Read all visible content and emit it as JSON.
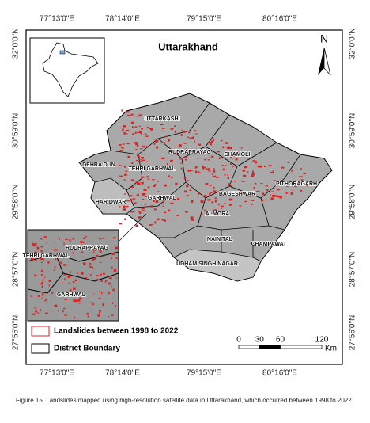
{
  "map": {
    "title": "Uttarakhand",
    "north": "N",
    "top_labels": [
      "77°13'0\"E",
      "78°14'0\"E",
      "79°15'0\"E",
      "80°16'0\"E"
    ],
    "bottom_labels": [
      "77°13'0\"E",
      "78°14'0\"E",
      "79°15'0\"E",
      "80°16'0\"E"
    ],
    "left_labels": [
      "32°0'0\"N",
      "30°59'0\"N",
      "29°58'0\"N",
      "28°57'0\"N",
      "27°56'0\"N"
    ],
    "right_labels": [
      "32°0'0\"N",
      "30°59'0\"N",
      "29°58'0\"N",
      "28°57'0\"N",
      "27°56'0\"N"
    ],
    "districts": [
      "UTTARKASHI",
      "RUDRAPRAYAG",
      "CHAMOLI",
      "DEHRA DUN",
      "TEHRI GARHWAL",
      "PITHORAGARH",
      "BAGESHWAR",
      "GARHWAL",
      "HARIDWAR",
      "ALMORA",
      "NAINITAL",
      "CHAMPAWAT",
      "UDHAM SINGH NAGAR"
    ],
    "inset_districts": [
      "RUDRAPRAYAG",
      "TEHRI GARHWAL",
      "GARHWAL"
    ],
    "legend": [
      "Landslides between 1998 to 2022",
      "District Boundary"
    ],
    "scale": {
      "ticks": [
        0,
        30,
        60,
        120
      ],
      "unit": "Km"
    }
  },
  "caption": "Figure 15. Landslides mapped using high-resolution satellite data in Uttarakhand, which occurred between 1998 to 2022."
}
